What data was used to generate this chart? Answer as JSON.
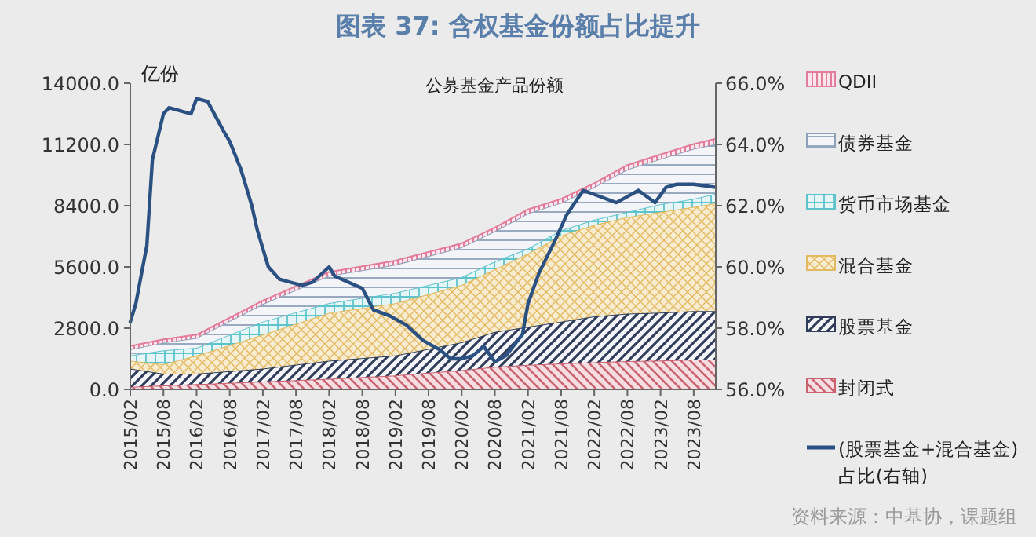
{
  "chart_data": {
    "type": "area",
    "stacked": true,
    "title": "图表 37: 含权基金份额占比提升",
    "subtitle": "公募基金产品份额",
    "ylabel": "亿份",
    "annotations": [
      "资料来源：中基协，课题组"
    ],
    "x": [
      "2015-02",
      "2015-08",
      "2016-02",
      "2017-02",
      "2018-02",
      "2019-02",
      "2020-02",
      "2020-08",
      "2021-02",
      "2021-08",
      "2022-02",
      "2022-08",
      "2023-02",
      "2023-08",
      "2023-12"
    ],
    "series": [
      {
        "name": "封闭式",
        "color": "#c9616f",
        "values": [
          120,
          180,
          240,
          360,
          480,
          640,
          880,
          1030,
          1120,
          1180,
          1240,
          1290,
          1320,
          1360,
          1360
        ]
      },
      {
        "name": "股票基金",
        "color": "#2f3d5a",
        "values": [
          830,
          540,
          480,
          590,
          830,
          910,
          1270,
          1600,
          1740,
          1920,
          2100,
          2170,
          2190,
          2220,
          2220
        ]
      },
      {
        "name": "混合基金",
        "color": "#e3b960",
        "values": [
          360,
          430,
          830,
          1550,
          2190,
          2390,
          2620,
          2860,
          3350,
          3940,
          4180,
          4420,
          4600,
          4770,
          4940
        ]
      },
      {
        "name": "货币市场基金",
        "color": "#5fc3cc",
        "values": [
          240,
          640,
          350,
          600,
          450,
          480,
          360,
          360,
          230,
          240,
          240,
          230,
          360,
          360,
          430
        ]
      },
      {
        "name": "债券基金",
        "color": "#8fa0ba",
        "values": [
          280,
          350,
          450,
          800,
          1250,
          1280,
          1370,
          1380,
          1610,
          1250,
          1490,
          1950,
          2070,
          2290,
          2270
        ]
      },
      {
        "name": "QDII",
        "color": "#e27d9c",
        "values": [
          150,
          150,
          150,
          160,
          170,
          190,
          180,
          170,
          180,
          180,
          180,
          200,
          200,
          220,
          240
        ]
      },
      {
        "name": "(股票基金+混合基金)占比(右轴)",
        "type": "line",
        "axis": "y2",
        "color": "#2b5182",
        "x": [
          "2015-02",
          "2015-03",
          "2015-05",
          "2015-06",
          "2015-08",
          "2015-09",
          "2015-11",
          "2016-01",
          "2016-02",
          "2016-04",
          "2016-07",
          "2016-08",
          "2016-10",
          "2016-12",
          "2017-01",
          "2017-02",
          "2017-03",
          "2017-05",
          "2017-07",
          "2017-09",
          "2017-11",
          "2018-02",
          "2018-03",
          "2018-08",
          "2018-10",
          "2019-01",
          "2019-04",
          "2019-07",
          "2019-10",
          "2019-12",
          "2020-02",
          "2020-04",
          "2020-06",
          "2020-08",
          "2020-10",
          "2021-01",
          "2021-02",
          "2021-04",
          "2021-07",
          "2021-09",
          "2021-12",
          "2022-03",
          "2022-06",
          "2022-08",
          "2022-10",
          "2023-01",
          "2023-03",
          "2023-05",
          "2023-08",
          "2023-12"
        ],
        "values": [
          58.2,
          58.8,
          60.7,
          63.5,
          65.0,
          65.2,
          65.1,
          65.0,
          65.5,
          65.4,
          64.4,
          64.1,
          63.2,
          62.0,
          61.2,
          60.6,
          60.0,
          59.6,
          59.5,
          59.4,
          59.5,
          60.0,
          59.7,
          59.3,
          58.6,
          58.4,
          58.1,
          57.6,
          57.3,
          57.0,
          57.0,
          57.1,
          57.4,
          56.9,
          57.1,
          57.8,
          58.8,
          59.8,
          60.9,
          61.7,
          62.5,
          62.3,
          62.1,
          62.3,
          62.5,
          62.1,
          62.6,
          62.7,
          62.7,
          62.6
        ]
      }
    ],
    "xlim": [
      "2015-02",
      "2023-12"
    ],
    "xticks": [
      {
        "value": "2015-02",
        "label": "2015/02"
      },
      {
        "value": "2015-08",
        "label": "2015/08"
      },
      {
        "value": "2016-02",
        "label": "2016/02"
      },
      {
        "value": "2016-08",
        "label": "2016/08"
      },
      {
        "value": "2017-02",
        "label": "2017/02"
      },
      {
        "value": "2017-08",
        "label": "2017/08"
      },
      {
        "value": "2018-02",
        "label": "2018/02"
      },
      {
        "value": "2018-08",
        "label": "2018/08"
      },
      {
        "value": "2019-02",
        "label": "2019/02"
      },
      {
        "value": "2019-08",
        "label": "2019/08"
      },
      {
        "value": "2020-02",
        "label": "2020/02"
      },
      {
        "value": "2020-08",
        "label": "2020/08"
      },
      {
        "value": "2021-02",
        "label": "2021/02"
      },
      {
        "value": "2021-08",
        "label": "2021/08"
      },
      {
        "value": "2022-02",
        "label": "2022/02"
      },
      {
        "value": "2022-08",
        "label": "2022/08"
      },
      {
        "value": "2023-02",
        "label": "2023/02"
      },
      {
        "value": "2023-08",
        "label": "2023/08"
      }
    ],
    "ylim": [
      0,
      14000
    ],
    "yticks": [
      {
        "value": 0,
        "label": "0.0"
      },
      {
        "value": 2800,
        "label": "2800.0"
      },
      {
        "value": 5600,
        "label": "5600.0"
      },
      {
        "value": 8400,
        "label": "8400.0"
      },
      {
        "value": 11200,
        "label": "11200.0"
      },
      {
        "value": 14000,
        "label": "14000.0"
      }
    ],
    "y2lim": [
      56,
      66
    ],
    "y2ticks": [
      {
        "value": 56,
        "label": "56.0%"
      },
      {
        "value": 58,
        "label": "58.0%"
      },
      {
        "value": 60,
        "label": "60.0%"
      },
      {
        "value": 62,
        "label": "62.0%"
      },
      {
        "value": 64,
        "label": "64.0%"
      },
      {
        "value": 66,
        "label": "66.0%"
      }
    ],
    "legend": "right",
    "grid": false
  }
}
